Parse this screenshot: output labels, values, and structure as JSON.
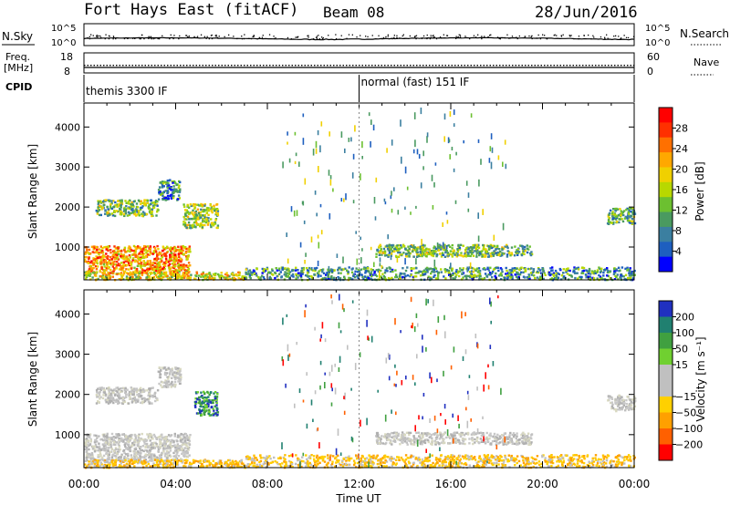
{
  "header": {
    "station": "Fort Hays East (fitACF)",
    "beam": "Beam 08",
    "date": "28/Jun/2016"
  },
  "colors": {
    "axis": "#000000",
    "background": "#ffffff",
    "grid": "#888888"
  },
  "chart_data": [
    {
      "type": "line",
      "name": "noise-panel",
      "left_label": "N.Sky",
      "right_label": "N.Search",
      "left_ticks": [
        "10^5",
        "10^0"
      ],
      "right_ticks": [
        "10^5",
        "10^0"
      ],
      "yscale": "log",
      "ylim": [
        1,
        100000
      ],
      "series": [
        {
          "name": "N.Sky",
          "style": "solid"
        },
        {
          "name": "N.Search",
          "style": "dotted"
        }
      ]
    },
    {
      "type": "line",
      "name": "freq-panel",
      "left_label": "Freq.",
      "left_unit": "[MHz]",
      "right_label": "Nave",
      "left_ticks": [
        "18",
        "8"
      ],
      "right_ticks": [
        "60",
        "0"
      ],
      "ylim_left": [
        8,
        18
      ],
      "ylim_right": [
        0,
        60
      ],
      "series": [
        {
          "name": "Freq",
          "style": "solid",
          "value": 10.5
        },
        {
          "name": "Nave",
          "style": "dotted",
          "value": 22
        }
      ]
    },
    {
      "type": "table",
      "name": "cpid-panel",
      "label": "CPID",
      "segments": [
        {
          "start_hour": 0,
          "text": "themis 3300 IF"
        },
        {
          "start_hour": 12,
          "text": "normal (fast) 151 IF"
        }
      ]
    },
    {
      "type": "heatmap",
      "name": "power-panel",
      "ylabel": "Slant Range [km]",
      "yticks": [
        "1000",
        "2000",
        "3000",
        "4000"
      ],
      "ylim": [
        180,
        4600
      ],
      "xlim": [
        0,
        24
      ],
      "colorbar": {
        "label": "Power [dB]",
        "ticks": [
          "4",
          "8",
          "12",
          "16",
          "20",
          "24",
          "28"
        ],
        "range": [
          0,
          32
        ],
        "colors": [
          "#0000ff",
          "#1e5fbf",
          "#3b7fa0",
          "#4a9a60",
          "#6cc030",
          "#b8d800",
          "#f0d000",
          "#ffa800",
          "#ff7000",
          "#ff3000",
          "#ff0000"
        ]
      },
      "regions": [
        {
          "t0": 0.0,
          "t1": 4.6,
          "r0": 350,
          "r1": 1050,
          "level": 0.7
        },
        {
          "t0": 0.5,
          "t1": 3.2,
          "r0": 1800,
          "r1": 2200,
          "level": 0.4
        },
        {
          "t0": 3.2,
          "t1": 4.2,
          "r0": 2200,
          "r1": 2700,
          "level": 0.25
        },
        {
          "t0": 4.3,
          "t1": 5.8,
          "r0": 1500,
          "r1": 2100,
          "level": 0.45
        },
        {
          "t0": 0.0,
          "t1": 7.0,
          "r0": 180,
          "r1": 400,
          "level": 0.55
        },
        {
          "t0": 12.7,
          "t1": 19.5,
          "r0": 780,
          "r1": 1080,
          "level": 0.4
        },
        {
          "t0": 22.8,
          "t1": 24.0,
          "r0": 1600,
          "r1": 2000,
          "level": 0.35
        },
        {
          "t0": 7.0,
          "t1": 24.0,
          "r0": 180,
          "r1": 520,
          "level": 0.3
        }
      ]
    },
    {
      "type": "heatmap",
      "name": "velocity-panel",
      "ylabel": "Slant Range [km]",
      "yticks": [
        "1000",
        "2000",
        "3000",
        "4000"
      ],
      "ylim": [
        180,
        4600
      ],
      "xlim": [
        0,
        24
      ],
      "xlabel": "Time UT",
      "xticks": [
        "00:00",
        "04:00",
        "08:00",
        "12:00",
        "16:00",
        "20:00",
        "00:00"
      ],
      "colorbar": {
        "label": "Velocity [m s⁻¹]",
        "ticks": [
          "200",
          "100",
          "50",
          "15",
          "−15",
          "−50",
          "−100",
          "−200"
        ],
        "colors": [
          "#2030c0",
          "#208070",
          "#40a040",
          "#70d030",
          "#c0c0c0",
          "#c0c0c0",
          "#ffd000",
          "#ffa000",
          "#ff6000",
          "#ff0000"
        ]
      },
      "regions": [
        {
          "t0": 0.0,
          "t1": 4.6,
          "r0": 350,
          "r1": 1050,
          "tone": "gray"
        },
        {
          "t0": 0.5,
          "t1": 3.2,
          "r0": 1800,
          "r1": 2200,
          "tone": "gray"
        },
        {
          "t0": 3.2,
          "t1": 4.2,
          "r0": 2200,
          "r1": 2700,
          "tone": "gray"
        },
        {
          "t0": 4.8,
          "t1": 5.8,
          "r0": 1500,
          "r1": 2100,
          "tone": "blue"
        },
        {
          "t0": 0.0,
          "t1": 7.0,
          "r0": 180,
          "r1": 400,
          "tone": "yellow"
        },
        {
          "t0": 12.7,
          "t1": 19.5,
          "r0": 780,
          "r1": 1080,
          "tone": "gray"
        },
        {
          "t0": 22.8,
          "t1": 24.0,
          "r0": 1600,
          "r1": 2000,
          "tone": "gray"
        },
        {
          "t0": 7.0,
          "t1": 24.0,
          "r0": 180,
          "r1": 520,
          "tone": "yellow"
        }
      ]
    }
  ]
}
